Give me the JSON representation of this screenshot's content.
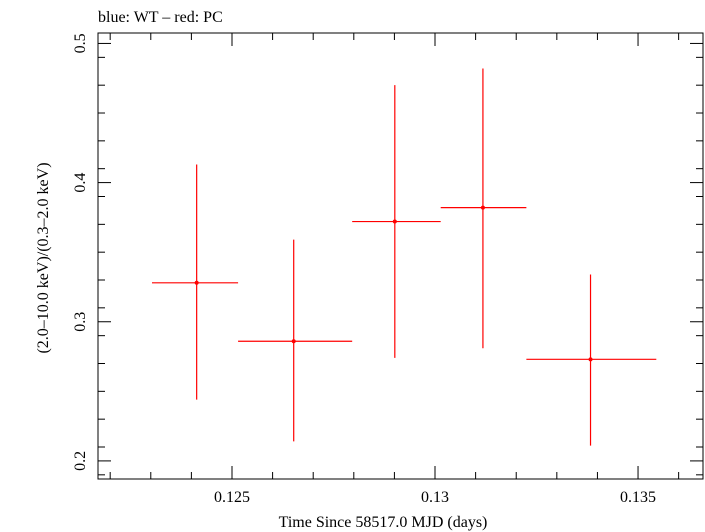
{
  "chart_data": {
    "type": "scatter",
    "title": "blue: WT – red: PC",
    "xlabel": "Time Since 58517.0 MJD (days)",
    "ylabel": "(2.0–10.0 keV)/(0.3–2.0 keV)",
    "xlim": [
      0.1217,
      0.1366
    ],
    "ylim": [
      0.187,
      0.5075
    ],
    "xticks": [
      0.125,
      0.13,
      0.135
    ],
    "xtick_labels": [
      "0.125",
      "0.13",
      "0.135"
    ],
    "yticks": [
      0.2,
      0.3,
      0.4,
      0.5
    ],
    "ytick_labels": [
      "0.2",
      "0.3",
      "0.4",
      "0.5"
    ],
    "grid": false,
    "series": [
      {
        "color": "#ff0000",
        "points": [
          {
            "x": 0.12413,
            "y": 0.328,
            "xlo": 0.12303,
            "xhi": 0.12515,
            "ylo": 0.244,
            "yhi": 0.413
          },
          {
            "x": 0.12652,
            "y": 0.286,
            "xlo": 0.12515,
            "xhi": 0.12796,
            "ylo": 0.214,
            "yhi": 0.359
          },
          {
            "x": 0.12901,
            "y": 0.372,
            "xlo": 0.12796,
            "xhi": 0.13014,
            "ylo": 0.274,
            "yhi": 0.47
          },
          {
            "x": 0.13118,
            "y": 0.382,
            "xlo": 0.13014,
            "xhi": 0.13225,
            "ylo": 0.281,
            "yhi": 0.482
          },
          {
            "x": 0.13383,
            "y": 0.273,
            "xlo": 0.13225,
            "xhi": 0.13545,
            "ylo": 0.211,
            "yhi": 0.334
          }
        ]
      }
    ]
  }
}
